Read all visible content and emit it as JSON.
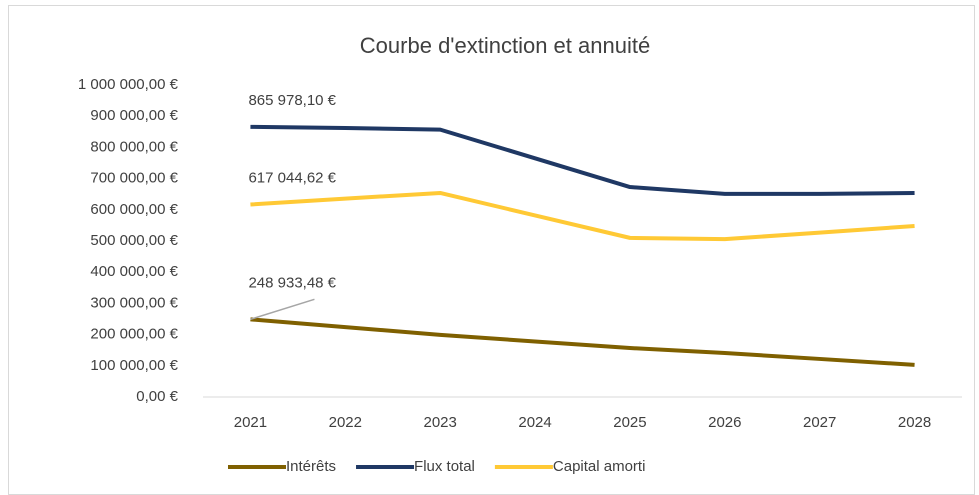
{
  "chart_data": {
    "type": "line",
    "title": "Courbe d'extinction et annuité",
    "categories": [
      "2021",
      "2022",
      "2023",
      "2024",
      "2025",
      "2026",
      "2027",
      "2028"
    ],
    "series": [
      {
        "name": "Intérêts",
        "color": "#7f6000",
        "values": [
          248933.48,
          224000,
          199000,
          178000,
          157000,
          141000,
          122000,
          103000
        ],
        "value_labels": [
          "248 933,48 €",
          null,
          null,
          null,
          null,
          null,
          null,
          null
        ]
      },
      {
        "name": "Flux total",
        "color": "#1f3864",
        "values": [
          865978.1,
          862000,
          857000,
          765000,
          673000,
          651000,
          651000,
          654000
        ],
        "value_labels": [
          "865 978,10 €",
          null,
          null,
          null,
          null,
          null,
          null,
          null
        ]
      },
      {
        "name": "Capital amorti",
        "color": "#ffc935",
        "values": [
          617044.62,
          636000,
          654000,
          582000,
          510000,
          506000,
          527000,
          548000
        ],
        "value_labels": [
          "617 044,62 €",
          null,
          null,
          null,
          null,
          null,
          null,
          null
        ]
      }
    ],
    "ylim": [
      0,
      1000000
    ],
    "yticks": [
      {
        "value": 0,
        "label": "0,00 €"
      },
      {
        "value": 100000,
        "label": "100 000,00 €"
      },
      {
        "value": 200000,
        "label": "200 000,00 €"
      },
      {
        "value": 300000,
        "label": "300 000,00 €"
      },
      {
        "value": 400000,
        "label": "400 000,00 €"
      },
      {
        "value": 500000,
        "label": "500 000,00 €"
      },
      {
        "value": 600000,
        "label": "600 000,00 €"
      },
      {
        "value": 700000,
        "label": "700 000,00 €"
      },
      {
        "value": 800000,
        "label": "800 000,00 €"
      },
      {
        "value": 900000,
        "label": "900 000,00 €"
      },
      {
        "value": 1000000,
        "label": "1 000 000,00 €"
      }
    ],
    "grid": false,
    "legend": "bottom"
  }
}
